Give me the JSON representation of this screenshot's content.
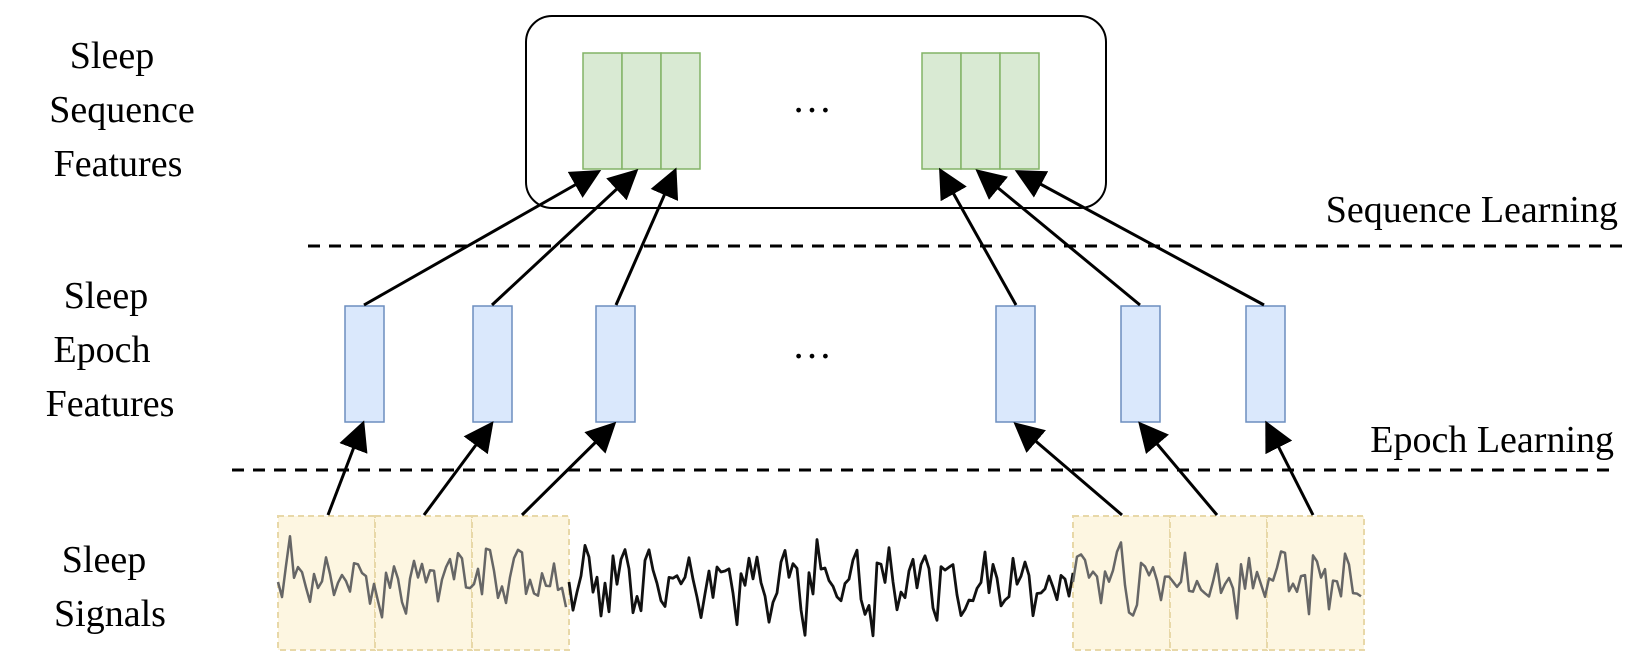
{
  "row_labels": {
    "sequence_features": [
      "Sleep",
      "Sequence",
      "Features"
    ],
    "epoch_features": [
      "Sleep",
      "Epoch",
      "Features"
    ],
    "signals": [
      "Sleep",
      "Signals"
    ]
  },
  "stage_labels": {
    "sequence_learning": "Sequence Learning",
    "epoch_learning": "Epoch Learning"
  },
  "ellipsis": {
    "sequence": "…",
    "epoch": "…"
  },
  "colors": {
    "sequence_block_fill": "#d9ead3",
    "sequence_block_stroke": "#82b366",
    "epoch_block_fill": "#dae8fc",
    "epoch_block_stroke": "#6c8ebf",
    "signal_window_fill": "#fdf6e1",
    "signal_window_stroke": "#e8d8a8",
    "arrow": "#000000"
  }
}
